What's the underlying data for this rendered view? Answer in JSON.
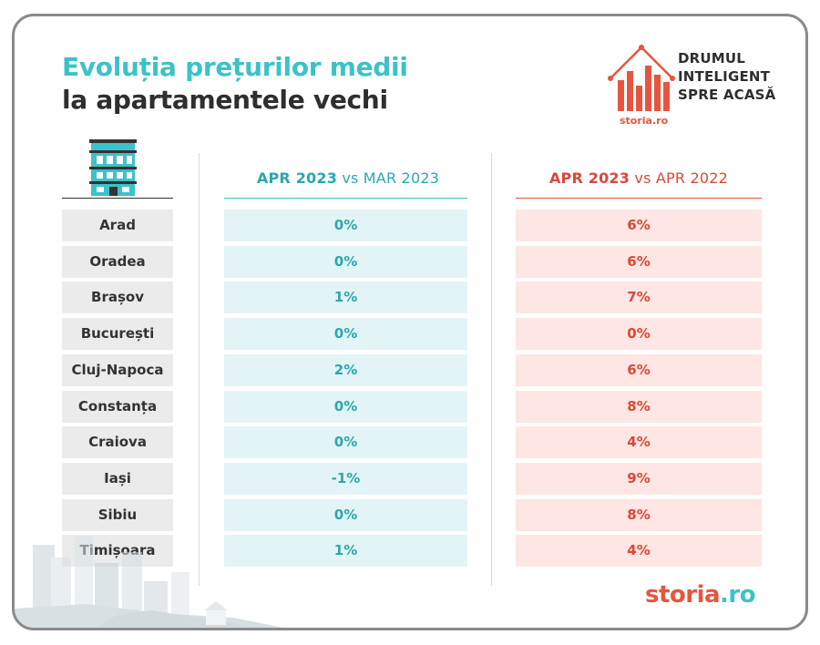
{
  "title": {
    "line1": "Evoluția prețurilor medii",
    "line2": "la apartamentele vechi"
  },
  "brand": {
    "line1": "DRUMUL",
    "line2": "INTELIGENT",
    "line3": "SPRE ACASĂ",
    "small": "storia.ro"
  },
  "columns": {
    "teal": {
      "bold": "APR 2023",
      "rest": " vs MAR 2023"
    },
    "red": {
      "bold": "APR 2023",
      "rest": " vs APR 2022"
    }
  },
  "rows": [
    {
      "city": "Arad",
      "mom": "0%",
      "yoy": "6%"
    },
    {
      "city": "Oradea",
      "mom": "0%",
      "yoy": "6%"
    },
    {
      "city": "Brașov",
      "mom": "1%",
      "yoy": "7%"
    },
    {
      "city": "București",
      "mom": "0%",
      "yoy": "0%"
    },
    {
      "city": "Cluj-Napoca",
      "mom": "2%",
      "yoy": "6%"
    },
    {
      "city": "Constanța",
      "mom": "0%",
      "yoy": "8%"
    },
    {
      "city": "Craiova",
      "mom": "0%",
      "yoy": "4%"
    },
    {
      "city": "Iași",
      "mom": "-1%",
      "yoy": "9%"
    },
    {
      "city": "Sibiu",
      "mom": "0%",
      "yoy": "8%"
    },
    {
      "city": "Timișoara",
      "mom": "1%",
      "yoy": "4%"
    }
  ],
  "footer": {
    "logo_a": "storia",
    "logo_b": ".ro"
  },
  "colors": {
    "teal": "#3cc2c7",
    "red": "#e8553e",
    "gray": "#ebebeb"
  },
  "icons": [
    "building-icon",
    "house-chart-logo-icon",
    "city-skyline-illustration"
  ]
}
